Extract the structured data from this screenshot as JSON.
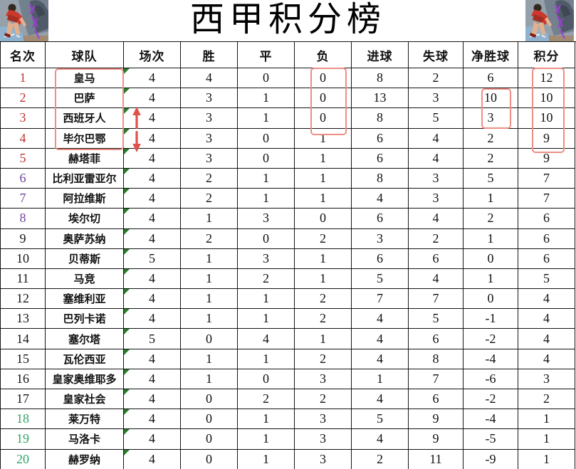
{
  "title": "西甲积分榜",
  "corner_art": {
    "left_label": "players-artwork",
    "right_label": "players-artwork"
  },
  "chart_data": {
    "type": "table",
    "title": "西甲积分榜",
    "columns": [
      "名次",
      "球队",
      "场次",
      "胜",
      "平",
      "负",
      "进球",
      "失球",
      "净胜球",
      "积分"
    ],
    "rows": [
      [
        1,
        "皇马",
        4,
        4,
        0,
        0,
        8,
        2,
        6,
        12
      ],
      [
        2,
        "巴萨",
        4,
        3,
        1,
        0,
        13,
        3,
        10,
        10
      ],
      [
        3,
        "西班牙人",
        4,
        3,
        1,
        0,
        8,
        5,
        3,
        10
      ],
      [
        4,
        "毕尔巴鄂",
        4,
        3,
        0,
        1,
        6,
        4,
        2,
        9
      ],
      [
        5,
        "赫塔菲",
        4,
        3,
        0,
        1,
        6,
        4,
        2,
        9
      ],
      [
        6,
        "比利亚雷亚尔",
        4,
        2,
        1,
        1,
        8,
        3,
        5,
        7
      ],
      [
        7,
        "阿拉维斯",
        4,
        2,
        1,
        1,
        4,
        3,
        1,
        7
      ],
      [
        8,
        "埃尔切",
        4,
        1,
        3,
        0,
        6,
        4,
        2,
        6
      ],
      [
        9,
        "奥萨苏纳",
        4,
        2,
        0,
        2,
        3,
        2,
        1,
        6
      ],
      [
        10,
        "贝蒂斯",
        5,
        1,
        3,
        1,
        6,
        6,
        0,
        6
      ],
      [
        11,
        "马竞",
        4,
        1,
        2,
        1,
        5,
        4,
        1,
        5
      ],
      [
        12,
        "塞维利亚",
        4,
        1,
        1,
        2,
        7,
        7,
        0,
        4
      ],
      [
        13,
        "巴列卡诺",
        4,
        1,
        1,
        2,
        4,
        5,
        -1,
        4
      ],
      [
        14,
        "塞尔塔",
        5,
        0,
        4,
        1,
        4,
        6,
        -2,
        4
      ],
      [
        15,
        "瓦伦西亚",
        4,
        1,
        1,
        2,
        4,
        8,
        -4,
        4
      ],
      [
        16,
        "皇家奥维耶多",
        4,
        1,
        0,
        3,
        1,
        7,
        -6,
        3
      ],
      [
        17,
        "皇家社会",
        4,
        0,
        2,
        2,
        4,
        6,
        -2,
        2
      ],
      [
        18,
        "莱万特",
        4,
        0,
        1,
        3,
        5,
        9,
        -4,
        1
      ],
      [
        19,
        "马洛卡",
        4,
        0,
        1,
        3,
        4,
        9,
        -5,
        1
      ],
      [
        20,
        "赫罗纳",
        4,
        0,
        1,
        3,
        2,
        11,
        -9,
        1
      ]
    ],
    "rank_colors": [
      "red",
      "red",
      "red",
      "red",
      "red",
      "purple",
      "purple",
      "purple",
      "black",
      "black",
      "black",
      "black",
      "black",
      "black",
      "black",
      "black",
      "black",
      "green",
      "green",
      "green"
    ]
  },
  "annotations": {
    "highlight_boxes": [
      {
        "label": "teams-rows-1-4"
      },
      {
        "label": "losses-rows-1-3"
      },
      {
        "label": "goal-diff-rows-2-3"
      },
      {
        "label": "points-rows-1-4"
      }
    ],
    "arrows": [
      {
        "direction": "up"
      },
      {
        "direction": "down"
      }
    ]
  },
  "colors": {
    "rank_red": "#c0342f",
    "rank_purple": "#6d4098",
    "rank_green": "#2fa566",
    "highlight_box": "#ee8e84",
    "arrow": "#e2504a",
    "corner_indicator": "#2a7a2a",
    "grid_line": "#141414"
  }
}
